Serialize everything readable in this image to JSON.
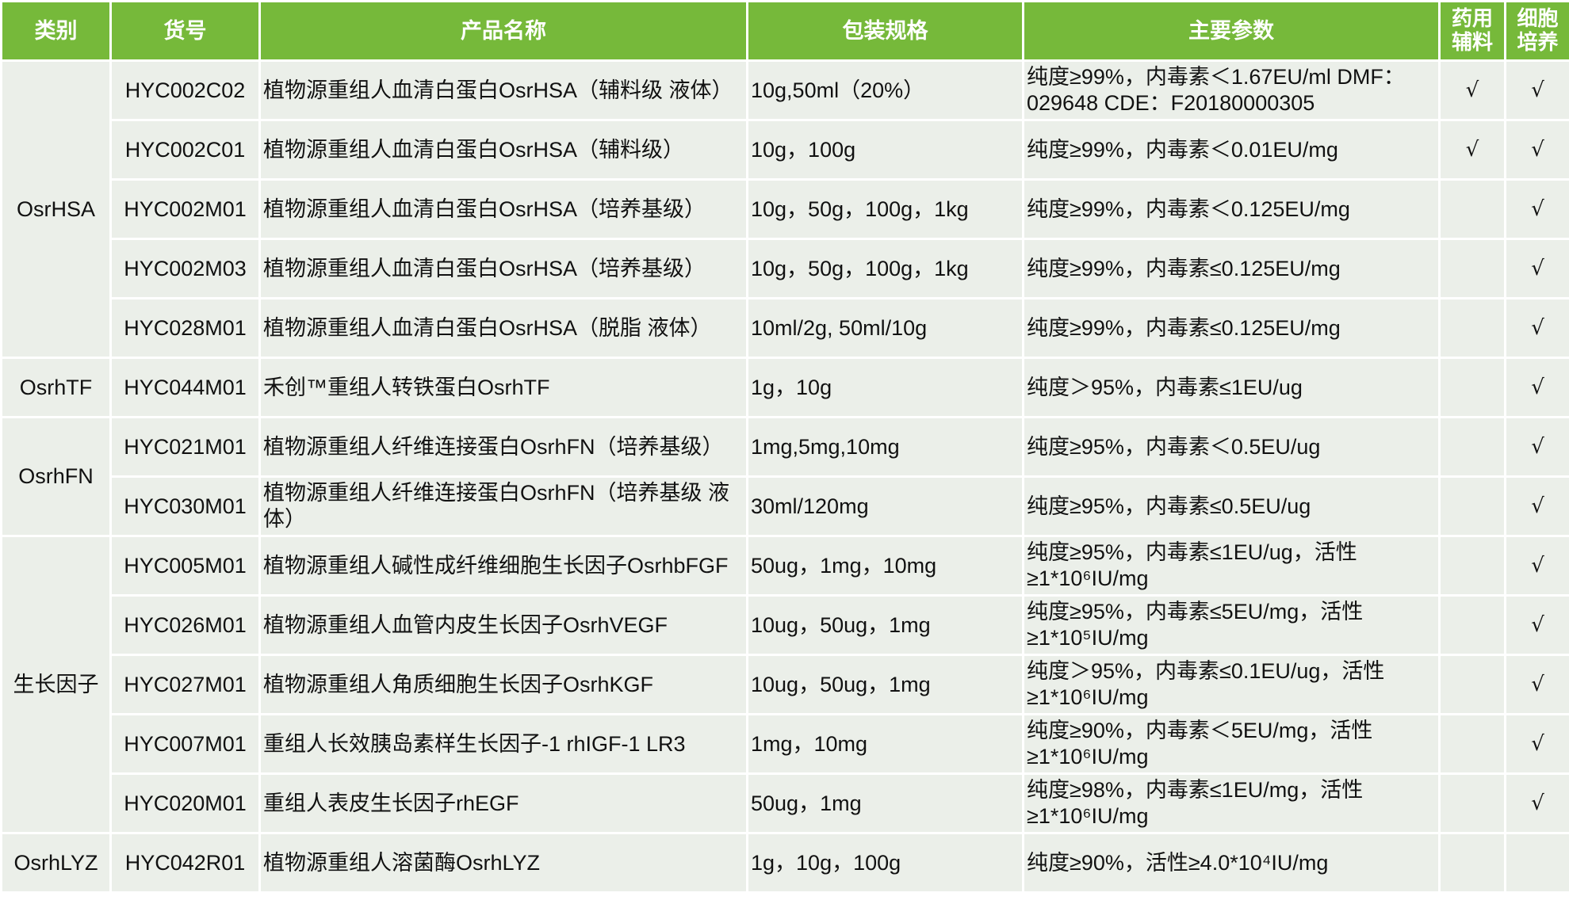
{
  "header": {
    "category": "类别",
    "code": "货号",
    "name": "产品名称",
    "spec": "包装规格",
    "params": "主要参数",
    "pharma": "药用辅料",
    "culture": "细胞培养"
  },
  "accent_color": "#76b93a",
  "check_mark": "√",
  "groups": [
    {
      "category": "OsrHSA",
      "rows": [
        {
          "code": "HYC002C02",
          "name": "植物源重组人血清白蛋白OsrHSA（辅料级 液体）",
          "spec": "10g,50ml（20%）",
          "params": "纯度≥99%，内毒素＜1.67EU/ml DMF：029648  CDE：F20180000305",
          "pharma": true,
          "culture": true
        },
        {
          "code": "HYC002C01",
          "name": "植物源重组人血清白蛋白OsrHSA（辅料级）",
          "spec": "10g，100g",
          "params": "纯度≥99%，内毒素＜0.01EU/mg",
          "pharma": true,
          "culture": true
        },
        {
          "code": "HYC002M01",
          "name": "植物源重组人血清白蛋白OsrHSA（培养基级）",
          "spec": "10g，50g，100g，1kg",
          "params": "纯度≥99%，内毒素＜0.125EU/mg",
          "pharma": false,
          "culture": true
        },
        {
          "code": "HYC002M03",
          "name": "植物源重组人血清白蛋白OsrHSA（培养基级）",
          "spec": "10g，50g，100g，1kg",
          "params": "纯度≥99%，内毒素≤0.125EU/mg",
          "pharma": false,
          "culture": true
        },
        {
          "code": "HYC028M01",
          "name": "植物源重组人血清白蛋白OsrHSA（脱脂 液体）",
          "spec": "10ml/2g, 50ml/10g",
          "params": "纯度≥99%，内毒素≤0.125EU/mg",
          "pharma": false,
          "culture": true
        }
      ]
    },
    {
      "category": "OsrhTF",
      "rows": [
        {
          "code": "HYC044M01",
          "name": "禾创™重组人转铁蛋白OsrhTF",
          "spec": "1g，10g",
          "params": "纯度＞95%，内毒素≤1EU/ug",
          "pharma": false,
          "culture": true
        }
      ]
    },
    {
      "category": "OsrhFN",
      "rows": [
        {
          "code": "HYC021M01",
          "name": "植物源重组人纤维连接蛋白OsrhFN（培养基级）",
          "spec": "1mg,5mg,10mg",
          "params": "纯度≥95%，内毒素＜0.5EU/ug",
          "pharma": false,
          "culture": true
        },
        {
          "code": "HYC030M01",
          "name": "植物源重组人纤维连接蛋白OsrhFN（培养基级 液体）",
          "spec": "30ml/120mg",
          "params": "纯度≥95%，内毒素≤0.5EU/ug",
          "pharma": false,
          "culture": true
        }
      ]
    },
    {
      "category": "生长因子",
      "rows": [
        {
          "code": "HYC005M01",
          "name": "植物源重组人碱性成纤维细胞生长因子OsrhbFGF",
          "spec": "50ug，1mg，10mg",
          "params": "纯度≥95%，内毒素≤1EU/ug，活性≥1*10⁶IU/mg",
          "pharma": false,
          "culture": true
        },
        {
          "code": "HYC026M01",
          "name": "植物源重组人血管内皮生长因子OsrhVEGF",
          "spec": "10ug，50ug，1mg",
          "params": "纯度≥95%，内毒素≤5EU/mg，活性≥1*10⁵IU/mg",
          "pharma": false,
          "culture": true
        },
        {
          "code": "HYC027M01",
          "name": "植物源重组人角质细胞生长因子OsrhKGF",
          "spec": "10ug，50ug，1mg",
          "params": "纯度＞95%，内毒素≤0.1EU/ug，活性≥1*10⁶IU/mg",
          "pharma": false,
          "culture": true
        },
        {
          "code": "HYC007M01",
          "name": "重组人长效胰岛素样生长因子-1 rhIGF-1 LR3",
          "spec": "1mg，10mg",
          "params": "纯度≥90%，内毒素＜5EU/mg，活性≥1*10⁶IU/mg",
          "pharma": false,
          "culture": true
        },
        {
          "code": "HYC020M01",
          "name": "重组人表皮生长因子rhEGF",
          "spec": "50ug，1mg",
          "params": "纯度≥98%，内毒素≤1EU/mg，活性≥1*10⁶IU/mg",
          "pharma": false,
          "culture": true
        }
      ]
    },
    {
      "category": "OsrhLYZ",
      "rows": [
        {
          "code": "HYC042R01",
          "name": "植物源重组人溶菌酶OsrhLYZ",
          "spec": "1g，10g，100g",
          "params": "纯度≥90%，活性≥4.0*10⁴IU/mg",
          "pharma": false,
          "culture": false
        }
      ]
    }
  ]
}
